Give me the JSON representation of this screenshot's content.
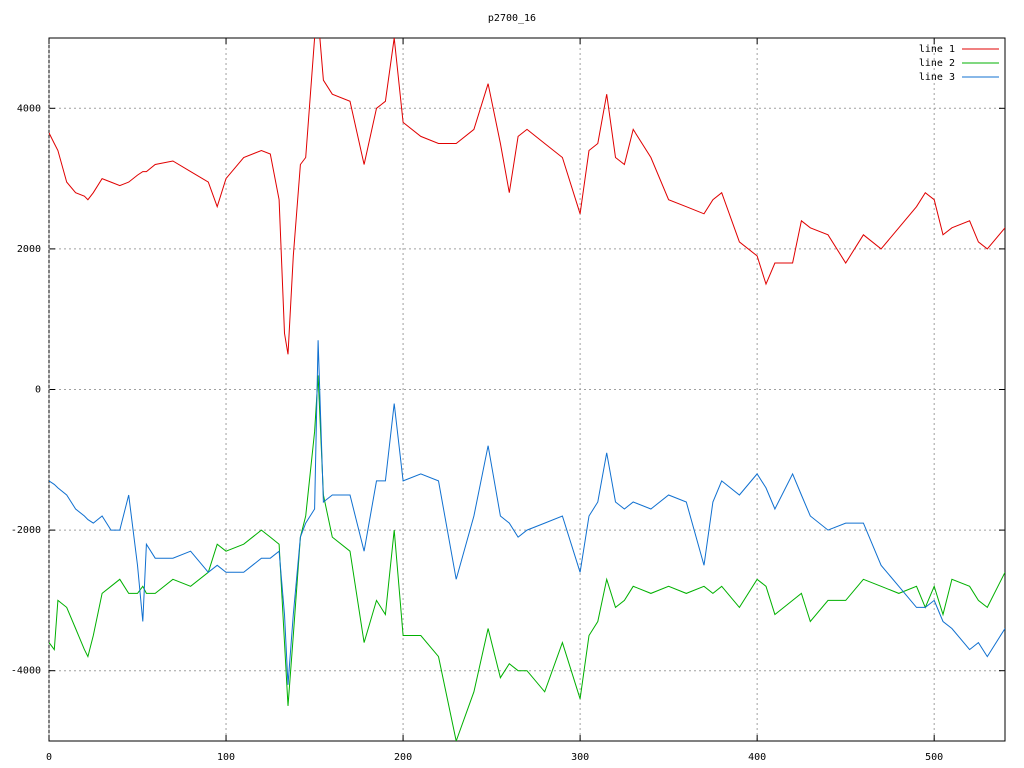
{
  "chart_data": {
    "type": "line",
    "title": "p2700_16",
    "x": [
      0,
      3,
      5,
      10,
      15,
      20,
      22,
      25,
      30,
      35,
      40,
      45,
      50,
      53,
      55,
      60,
      70,
      80,
      90,
      95,
      100,
      110,
      120,
      125,
      130,
      133,
      135,
      138,
      142,
      145,
      150,
      152,
      155,
      160,
      170,
      178,
      185,
      190,
      195,
      200,
      210,
      220,
      230,
      240,
      248,
      255,
      260,
      265,
      270,
      280,
      290,
      300,
      305,
      310,
      315,
      320,
      325,
      330,
      340,
      350,
      360,
      370,
      375,
      380,
      390,
      400,
      405,
      410,
      420,
      425,
      430,
      440,
      450,
      460,
      470,
      480,
      490,
      495,
      500,
      505,
      510,
      520,
      525,
      530,
      540
    ],
    "series": [
      {
        "name": "line 1",
        "color": "#e00000",
        "values": [
          3650,
          3500,
          3400,
          2950,
          2800,
          2750,
          2700,
          2800,
          3000,
          2950,
          2900,
          2950,
          3050,
          3100,
          3100,
          3200,
          3250,
          3100,
          2950,
          2600,
          3000,
          3300,
          3400,
          3350,
          2700,
          800,
          500,
          1900,
          3200,
          3300,
          5000,
          5300,
          4400,
          4200,
          4100,
          3200,
          4000,
          4100,
          5000,
          3800,
          3600,
          3500,
          3500,
          3700,
          4350,
          3500,
          2800,
          3600,
          3700,
          3500,
          3300,
          2500,
          3400,
          3500,
          4200,
          3300,
          3200,
          3700,
          3300,
          2700,
          2600,
          2500,
          2700,
          2800,
          2100,
          1900,
          1500,
          1800,
          1800,
          2400,
          2300,
          2200,
          1800,
          2200,
          2000,
          2300,
          2600,
          2800,
          2700,
          2200,
          2300,
          2400,
          2100,
          2000,
          2300
        ]
      },
      {
        "name": "line 2",
        "color": "#00b000",
        "values": [
          -3600,
          -3700,
          -3000,
          -3100,
          -3400,
          -3700,
          -3800,
          -3500,
          -2900,
          -2800,
          -2700,
          -2900,
          -2900,
          -2800,
          -2900,
          -2900,
          -2700,
          -2800,
          -2600,
          -2200,
          -2300,
          -2200,
          -2000,
          -2100,
          -2200,
          -3600,
          -4500,
          -3500,
          -2100,
          -1800,
          -600,
          200,
          -1500,
          -2100,
          -2300,
          -3600,
          -3000,
          -3200,
          -2000,
          -3500,
          -3500,
          -3800,
          -5000,
          -4300,
          -3400,
          -4100,
          -3900,
          -4000,
          -4000,
          -4300,
          -3600,
          -4400,
          -3500,
          -3300,
          -2700,
          -3100,
          -3000,
          -2800,
          -2900,
          -2800,
          -2900,
          -2800,
          -2900,
          -2800,
          -3100,
          -2700,
          -2800,
          -3200,
          -3000,
          -2900,
          -3300,
          -3000,
          -3000,
          -2700,
          -2800,
          -2900,
          -2800,
          -3100,
          -2800,
          -3200,
          -2700,
          -2800,
          -3000,
          -3100,
          -2600
        ]
      },
      {
        "name": "line 3",
        "color": "#1070d0",
        "values": [
          -1300,
          -1350,
          -1400,
          -1500,
          -1700,
          -1800,
          -1850,
          -1900,
          -1800,
          -2000,
          -2000,
          -1500,
          -2500,
          -3300,
          -2200,
          -2400,
          -2400,
          -2300,
          -2600,
          -2500,
          -2600,
          -2600,
          -2400,
          -2400,
          -2300,
          -3200,
          -4200,
          -3200,
          -2100,
          -1900,
          -1700,
          700,
          -1600,
          -1500,
          -1500,
          -2300,
          -1300,
          -1300,
          -200,
          -1300,
          -1200,
          -1300,
          -2700,
          -1800,
          -800,
          -1800,
          -1900,
          -2100,
          -2000,
          -1900,
          -1800,
          -2600,
          -1800,
          -1600,
          -900,
          -1600,
          -1700,
          -1600,
          -1700,
          -1500,
          -1600,
          -2500,
          -1600,
          -1300,
          -1500,
          -1200,
          -1400,
          -1700,
          -1200,
          -1500,
          -1800,
          -2000,
          -1900,
          -1900,
          -2500,
          -2800,
          -3100,
          -3100,
          -3000,
          -3300,
          -3400,
          -3700,
          -3600,
          -3800,
          -3400
        ]
      }
    ],
    "xlim": [
      0,
      540
    ],
    "xticks": [
      0,
      100,
      200,
      300,
      400,
      500
    ],
    "ylim": [
      -5000,
      5000
    ],
    "yticks": [
      -4000,
      -2000,
      0,
      2000,
      4000
    ],
    "grid": true,
    "legend": "top-right"
  }
}
